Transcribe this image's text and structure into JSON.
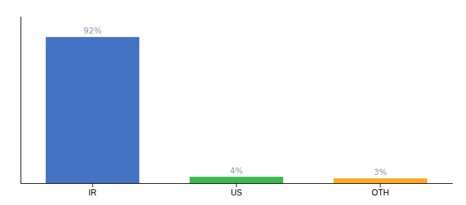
{
  "chart_data": {
    "type": "bar",
    "categories": [
      "IR",
      "US",
      "OTH"
    ],
    "values": [
      92,
      4,
      3
    ],
    "value_labels": [
      "92%",
      "4%",
      "3%"
    ],
    "colors": [
      "#4472c4",
      "#3dba4e",
      "#ffa726"
    ],
    "ylim": [
      0,
      105
    ],
    "data_labels": true,
    "tick_labels": "x",
    "grid": false
  }
}
